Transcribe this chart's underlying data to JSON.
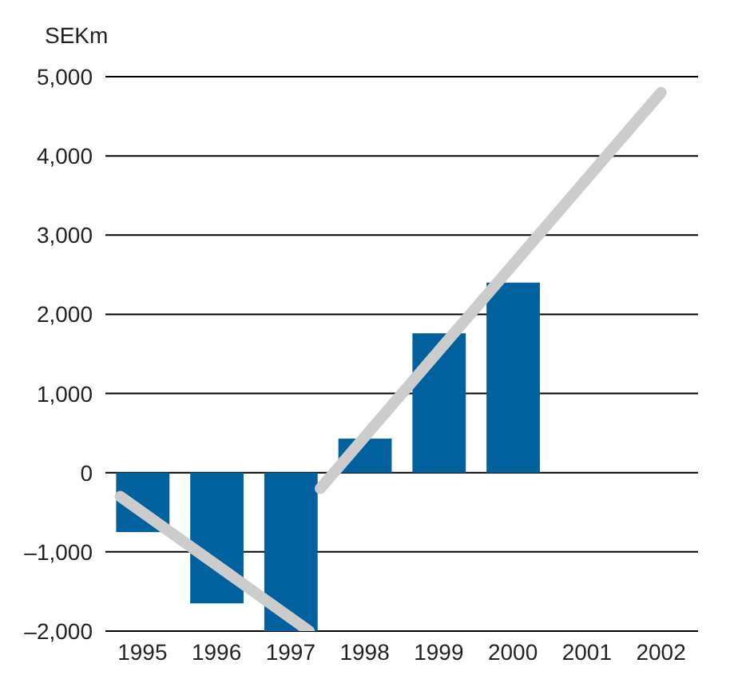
{
  "chart_data": {
    "type": "bar",
    "ylabel": "SEKm",
    "x": [
      1995,
      1996,
      1997,
      1998,
      1999,
      2000
    ],
    "xlim": [
      1994.5,
      2002.5
    ],
    "xticks": [
      1995,
      1996,
      1997,
      1998,
      1999,
      2000,
      2001,
      2002
    ],
    "series": [
      {
        "color": "#00619e",
        "values": [
          -750,
          -1650,
          -2000,
          430,
          1760,
          2400
        ]
      },
      {
        "type": "line",
        "color": "#cccccc",
        "x": [
          1994.7,
          1997.25
        ],
        "values": [
          -300,
          -2000
        ]
      },
      {
        "type": "line",
        "color": "#cccccc",
        "x": [
          1997.4,
          2002
        ],
        "values": [
          -200,
          4800
        ]
      }
    ],
    "ylim": [
      -2000,
      5000
    ],
    "yticks": [
      {
        "value": -2000,
        "label": "–2,000"
      },
      {
        "value": -1000,
        "label": "–1,000"
      },
      0,
      {
        "value": 1000,
        "label": "1,000"
      },
      {
        "value": 2000,
        "label": "2,000"
      },
      {
        "value": 3000,
        "label": "3,000"
      },
      {
        "value": 4000,
        "label": "4,000"
      },
      {
        "value": 5000,
        "label": "5,000"
      }
    ],
    "grid": "y",
    "legend": false
  }
}
